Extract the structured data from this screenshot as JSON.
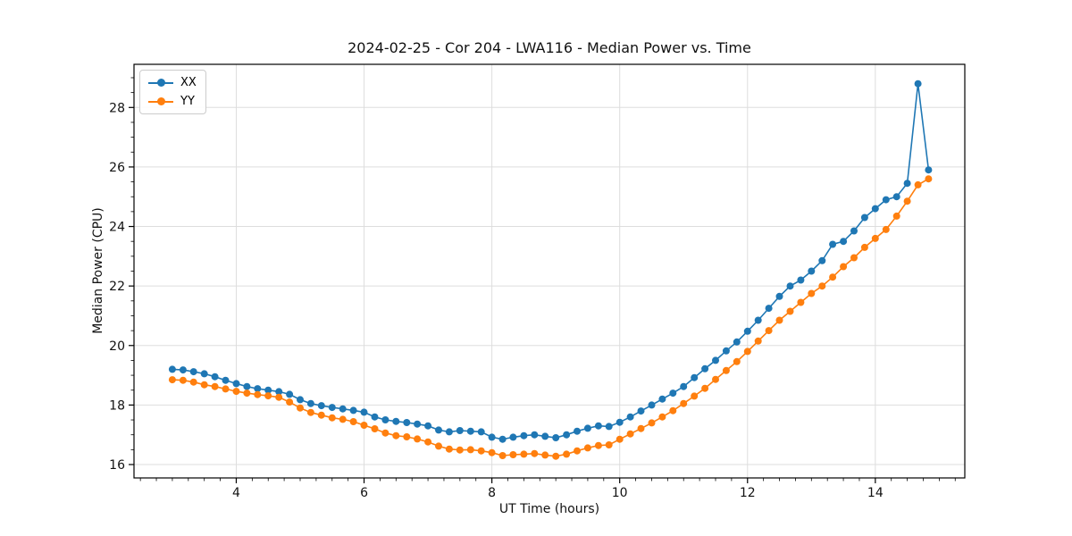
{
  "colors": {
    "background": "#ffffff",
    "grid": "#dddddd",
    "spine": "#000000",
    "text": "#111111",
    "legend_border": "#cccccc",
    "series_xx": "#1f77b4",
    "series_yy": "#ff7f0e"
  },
  "chart_data": {
    "type": "line",
    "title": "2024-02-25 - Cor 204 - LWA116 - Median Power vs. Time",
    "xlabel": "UT Time (hours)",
    "ylabel": "Median Power (CPU)",
    "grid": true,
    "legend_position": "upper left",
    "xlim": [
      2.4,
      15.4
    ],
    "ylim": [
      15.55,
      29.45
    ],
    "x_major_ticks": [
      4,
      6,
      8,
      10,
      12,
      14
    ],
    "y_major_ticks": [
      16,
      18,
      20,
      22,
      24,
      26,
      28
    ],
    "x_minor_step": 0.25,
    "y_minor_step": 0.5,
    "x": [
      3.0,
      3.167,
      3.333,
      3.5,
      3.667,
      3.833,
      4.0,
      4.167,
      4.333,
      4.5,
      4.667,
      4.833,
      5.0,
      5.167,
      5.333,
      5.5,
      5.667,
      5.833,
      6.0,
      6.167,
      6.333,
      6.5,
      6.667,
      6.833,
      7.0,
      7.167,
      7.333,
      7.5,
      7.667,
      7.833,
      8.0,
      8.167,
      8.333,
      8.5,
      8.667,
      8.833,
      9.0,
      9.167,
      9.333,
      9.5,
      9.667,
      9.833,
      10.0,
      10.167,
      10.333,
      10.5,
      10.667,
      10.833,
      11.0,
      11.167,
      11.333,
      11.5,
      11.667,
      11.833,
      12.0,
      12.167,
      12.333,
      12.5,
      12.667,
      12.833,
      13.0,
      13.167,
      13.333,
      13.5,
      13.667,
      13.833,
      14.0,
      14.167,
      14.333,
      14.5,
      14.667,
      14.833
    ],
    "series": [
      {
        "name": "XX",
        "color": "#1f77b4",
        "marker": "circle",
        "values": [
          19.2,
          19.18,
          19.12,
          19.05,
          18.95,
          18.83,
          18.72,
          18.62,
          18.55,
          18.5,
          18.45,
          18.36,
          18.18,
          18.05,
          17.98,
          17.92,
          17.87,
          17.82,
          17.76,
          17.6,
          17.5,
          17.45,
          17.41,
          17.36,
          17.3,
          17.16,
          17.1,
          17.14,
          17.12,
          17.1,
          16.92,
          16.85,
          16.92,
          16.97,
          17.0,
          16.95,
          16.9,
          17.0,
          17.12,
          17.22,
          17.3,
          17.28,
          17.42,
          17.6,
          17.8,
          18.0,
          18.2,
          18.4,
          18.62,
          18.92,
          19.22,
          19.5,
          19.82,
          20.12,
          20.48,
          20.85,
          21.25,
          21.65,
          22.0,
          22.2,
          22.5,
          22.85,
          23.4,
          23.5,
          23.85,
          24.3,
          24.6,
          24.9,
          25.0,
          25.45,
          28.8,
          25.9
        ]
      },
      {
        "name": "YY",
        "color": "#ff7f0e",
        "marker": "circle",
        "values": [
          18.85,
          18.83,
          18.77,
          18.68,
          18.62,
          18.54,
          18.46,
          18.4,
          18.35,
          18.31,
          18.26,
          18.1,
          17.9,
          17.75,
          17.66,
          17.57,
          17.52,
          17.44,
          17.32,
          17.2,
          17.06,
          16.97,
          16.93,
          16.86,
          16.76,
          16.62,
          16.52,
          16.49,
          16.5,
          16.46,
          16.4,
          16.3,
          16.33,
          16.35,
          16.37,
          16.32,
          16.28,
          16.35,
          16.46,
          16.56,
          16.64,
          16.66,
          16.85,
          17.03,
          17.21,
          17.4,
          17.6,
          17.81,
          18.05,
          18.3,
          18.56,
          18.86,
          19.16,
          19.46,
          19.8,
          20.15,
          20.5,
          20.85,
          21.15,
          21.45,
          21.75,
          22.0,
          22.3,
          22.65,
          22.95,
          23.3,
          23.6,
          23.9,
          24.35,
          24.85,
          25.4,
          25.6
        ]
      }
    ]
  }
}
